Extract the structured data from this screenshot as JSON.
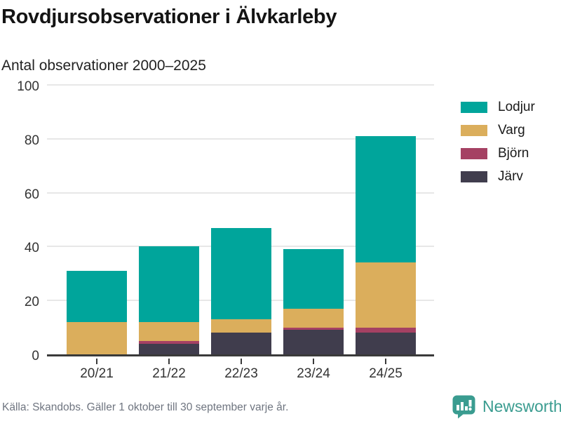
{
  "header": {
    "title": "Rovdjursobservationer i Älvkarleby",
    "subtitle": "Antal observationer 2000–2025"
  },
  "chart_data": {
    "type": "bar",
    "stacked": true,
    "title": "Rovdjursobservationer i Älvkarleby",
    "subtitle": "Antal observationer 2000–2025",
    "categories": [
      "20/21",
      "21/22",
      "22/23",
      "23/24",
      "24/25"
    ],
    "series": [
      {
        "name": "Lodjur",
        "color": "#00a59b",
        "values": [
          19,
          28,
          34,
          22,
          47
        ]
      },
      {
        "name": "Varg",
        "color": "#dbae5c",
        "values": [
          12,
          7,
          5,
          7,
          24
        ]
      },
      {
        "name": "Björn",
        "color": "#a54163",
        "values": [
          0,
          1,
          0,
          1,
          2
        ]
      },
      {
        "name": "Järv",
        "color": "#403d4d",
        "values": [
          0,
          4,
          8,
          9,
          8
        ]
      }
    ],
    "totals": [
      31,
      40,
      47,
      39,
      81
    ],
    "xlabel": "",
    "ylabel": "",
    "ylim": [
      0,
      100
    ],
    "yticks": [
      0,
      20,
      40,
      60,
      80,
      100
    ],
    "grid": true,
    "legend_position": "right",
    "stack_order_bottom_to_top": [
      "Järv",
      "Björn",
      "Varg",
      "Lodjur"
    ]
  },
  "footer": {
    "source": "Källa: Skandobs. Gäller 1 oktober till 30 september varje år."
  },
  "branding": {
    "logo_text": "Newsworthy",
    "logo_color": "#3a9c90",
    "logo_icon": "speech-bubble-bar-chart"
  }
}
